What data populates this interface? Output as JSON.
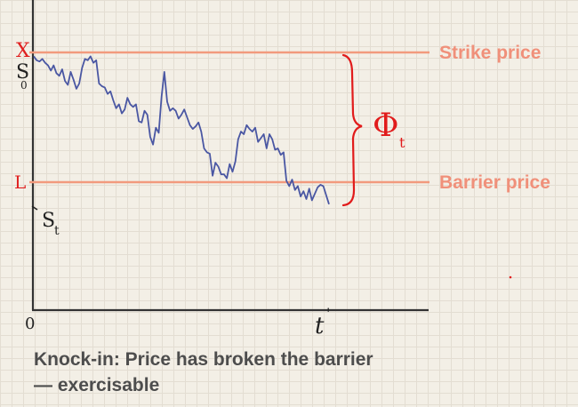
{
  "labels": {
    "strike_axis": "X",
    "s0": "S",
    "s0_sub": "0",
    "barrier_axis": "L",
    "st": "S",
    "st_sub": "t",
    "origin": "0",
    "t_axis": "t",
    "t_prime": "'",
    "strike_price": "Strike price",
    "barrier_price": "Barrier price",
    "phi": "Φ",
    "phi_sub": "t"
  },
  "caption": "Knock-in: Price has broken the barrier — exercisable",
  "colors": {
    "line": "#f29a7d",
    "label": "#f0907a",
    "path": "#4a57a3",
    "axis": "#333333",
    "bracket": "#e11b1b"
  },
  "chart_data": {
    "type": "line",
    "strike_level": 1.0,
    "barrier_level": 0.0,
    "x_range": [
      0,
      1
    ],
    "series": [
      {
        "values": [
          0.97,
          0.94,
          0.93,
          0.95,
          0.92,
          0.9,
          0.86,
          0.9,
          0.84,
          0.82,
          0.87,
          0.78,
          0.75,
          0.85,
          0.79,
          0.72,
          0.76,
          0.88,
          0.95,
          0.94,
          0.97,
          0.92,
          0.94,
          0.76,
          0.74,
          0.73,
          0.68,
          0.7,
          0.63,
          0.57,
          0.6,
          0.53,
          0.56,
          0.65,
          0.6,
          0.58,
          0.6,
          0.47,
          0.46,
          0.55,
          0.52,
          0.35,
          0.29,
          0.42,
          0.38,
          0.66,
          0.85,
          0.62,
          0.55,
          0.57,
          0.55,
          0.49,
          0.52,
          0.56,
          0.5,
          0.44,
          0.41,
          0.43,
          0.46,
          0.39,
          0.26,
          0.23,
          0.22,
          0.05,
          0.15,
          0.12,
          0.06,
          0.06,
          0.03,
          0.14,
          0.08,
          0.16,
          0.33,
          0.39,
          0.37,
          0.44,
          0.41,
          0.39,
          0.42,
          0.31,
          0.34,
          0.37,
          0.26,
          0.37,
          0.33,
          0.25,
          0.26,
          0.21,
          0.23,
          0.01,
          -0.03,
          0.02,
          -0.06,
          -0.03,
          -0.11,
          -0.07,
          -0.13,
          -0.05,
          -0.14,
          -0.09,
          -0.04,
          -0.02,
          -0.03,
          -0.1,
          -0.17
        ]
      }
    ]
  }
}
